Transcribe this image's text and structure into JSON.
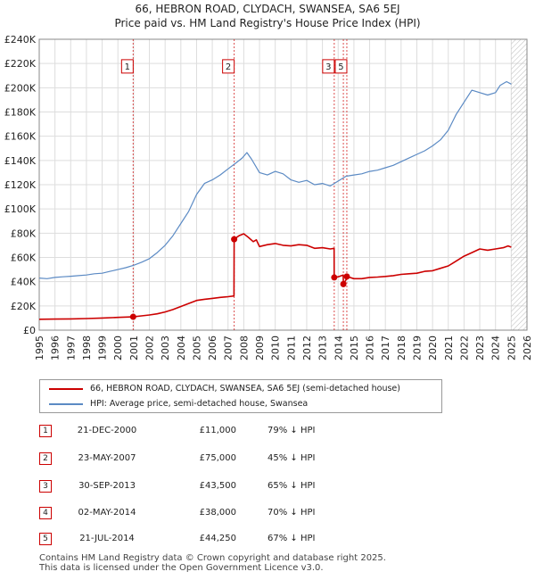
{
  "title_line1": "66, HEBRON ROAD, CLYDACH, SWANSEA, SA6 5EJ",
  "title_line2": "Price paid vs. HM Land Registry's House Price Index (HPI)",
  "colors": {
    "price": "#cc0000",
    "hpi": "#5b8ac4",
    "marker_line": "#cc0000",
    "grid": "#dddddd",
    "forecast_hatch": "#bbbbbb"
  },
  "legend": {
    "price_label": "66, HEBRON ROAD, CLYDACH, SWANSEA, SA6 5EJ (semi-detached house)",
    "hpi_label": "HPI: Average price, semi-detached house, Swansea"
  },
  "transactions": [
    {
      "num": "1",
      "date": "21-DEC-2000",
      "price": "£11,000",
      "hpi": "79% ↓ HPI"
    },
    {
      "num": "2",
      "date": "23-MAY-2007",
      "price": "£75,000",
      "hpi": "45% ↓ HPI"
    },
    {
      "num": "3",
      "date": "30-SEP-2013",
      "price": "£43,500",
      "hpi": "65% ↓ HPI"
    },
    {
      "num": "4",
      "date": "02-MAY-2014",
      "price": "£38,000",
      "hpi": "70% ↓ HPI"
    },
    {
      "num": "5",
      "date": "21-JUL-2014",
      "price": "£44,250",
      "hpi": "67% ↓ HPI"
    }
  ],
  "footer_line1": "Contains HM Land Registry data © Crown copyright and database right 2025.",
  "footer_line2": "This data is licensed under the Open Government Licence v3.0.",
  "chart_data": {
    "type": "line",
    "xlim": [
      1995,
      2026
    ],
    "ylim": [
      0,
      240000
    ],
    "xticks": [
      "1995",
      "1996",
      "1997",
      "1998",
      "1999",
      "2000",
      "2001",
      "2002",
      "2003",
      "2004",
      "2005",
      "2006",
      "2007",
      "2008",
      "2009",
      "2010",
      "2011",
      "2012",
      "2013",
      "2014",
      "2015",
      "2016",
      "2017",
      "2018",
      "2019",
      "2020",
      "2021",
      "2022",
      "2023",
      "2024",
      "2025",
      "2026"
    ],
    "yticks": [
      {
        "v": 0,
        "label": "£0"
      },
      {
        "v": 20000,
        "label": "£20K"
      },
      {
        "v": 40000,
        "label": "£40K"
      },
      {
        "v": 60000,
        "label": "£60K"
      },
      {
        "v": 80000,
        "label": "£80K"
      },
      {
        "v": 100000,
        "label": "£100K"
      },
      {
        "v": 120000,
        "label": "£120K"
      },
      {
        "v": 140000,
        "label": "£140K"
      },
      {
        "v": 160000,
        "label": "£160K"
      },
      {
        "v": 180000,
        "label": "£180K"
      },
      {
        "v": 200000,
        "label": "£200K"
      },
      {
        "v": 220000,
        "label": "£220K"
      },
      {
        "v": 240000,
        "label": "£240K"
      }
    ],
    "forecast_start": 2025.0,
    "markers": [
      {
        "label": "1",
        "x": 2000.97,
        "y": 11000,
        "box_y": 218000
      },
      {
        "label": "2",
        "x": 2007.39,
        "y": 75000,
        "box_y": 218000
      },
      {
        "label": "3",
        "x": 2013.75,
        "y": 43500,
        "box_y": 218000
      },
      {
        "label": "4",
        "x": 2014.33,
        "y": 38000,
        "box_y": null
      },
      {
        "label": "5",
        "x": 2014.55,
        "y": 44250,
        "box_y": 218000
      }
    ],
    "series": [
      {
        "name": "66, HEBRON ROAD, CLYDACH, SWANSEA, SA6 5EJ (semi-detached house)",
        "points": [
          [
            1995.0,
            9000
          ],
          [
            1996.0,
            9100
          ],
          [
            1997.0,
            9300
          ],
          [
            1998.0,
            9600
          ],
          [
            1999.0,
            10000
          ],
          [
            2000.0,
            10500
          ],
          [
            2000.97,
            11000
          ],
          [
            2001.5,
            11800
          ],
          [
            2002.0,
            12500
          ],
          [
            2002.5,
            13500
          ],
          [
            2003.0,
            15000
          ],
          [
            2003.5,
            17000
          ],
          [
            2004.0,
            19500
          ],
          [
            2004.5,
            22000
          ],
          [
            2005.0,
            24500
          ],
          [
            2005.5,
            25500
          ],
          [
            2006.0,
            26200
          ],
          [
            2006.5,
            27000
          ],
          [
            2007.0,
            27600
          ],
          [
            2007.38,
            28200
          ],
          [
            2007.39,
            75000
          ],
          [
            2007.7,
            78000
          ],
          [
            2008.0,
            79500
          ],
          [
            2008.3,
            76500
          ],
          [
            2008.6,
            73000
          ],
          [
            2008.8,
            74500
          ],
          [
            2009.0,
            69000
          ],
          [
            2009.5,
            70500
          ],
          [
            2010.0,
            71500
          ],
          [
            2010.5,
            70000
          ],
          [
            2011.0,
            69500
          ],
          [
            2011.5,
            70500
          ],
          [
            2012.0,
            70000
          ],
          [
            2012.5,
            67500
          ],
          [
            2013.0,
            68000
          ],
          [
            2013.5,
            67000
          ],
          [
            2013.74,
            67500
          ],
          [
            2013.75,
            43500
          ],
          [
            2014.0,
            44000
          ],
          [
            2014.32,
            45500
          ],
          [
            2014.33,
            38000
          ],
          [
            2014.54,
            42500
          ],
          [
            2014.55,
            44250
          ],
          [
            2015.0,
            42500
          ],
          [
            2015.5,
            42500
          ],
          [
            2016.0,
            43500
          ],
          [
            2016.5,
            43800
          ],
          [
            2017.0,
            44300
          ],
          [
            2017.5,
            45000
          ],
          [
            2018.0,
            46000
          ],
          [
            2018.5,
            46500
          ],
          [
            2019.0,
            47000
          ],
          [
            2019.5,
            48500
          ],
          [
            2020.0,
            49000
          ],
          [
            2020.5,
            51000
          ],
          [
            2021.0,
            53000
          ],
          [
            2021.5,
            57000
          ],
          [
            2022.0,
            61000
          ],
          [
            2022.5,
            64000
          ],
          [
            2023.0,
            67000
          ],
          [
            2023.5,
            66000
          ],
          [
            2024.0,
            67000
          ],
          [
            2024.5,
            68000
          ],
          [
            2024.8,
            69500
          ],
          [
            2025.0,
            68500
          ]
        ]
      },
      {
        "name": "HPI: Average price, semi-detached house, Swansea",
        "points": [
          [
            1995.0,
            43000
          ],
          [
            1995.5,
            42500
          ],
          [
            1996.0,
            43500
          ],
          [
            1996.5,
            44000
          ],
          [
            1997.0,
            44500
          ],
          [
            1997.5,
            45000
          ],
          [
            1998.0,
            45500
          ],
          [
            1998.5,
            46500
          ],
          [
            1999.0,
            47000
          ],
          [
            1999.5,
            48500
          ],
          [
            2000.0,
            50000
          ],
          [
            2000.5,
            51500
          ],
          [
            2001.0,
            53500
          ],
          [
            2001.5,
            56000
          ],
          [
            2002.0,
            59000
          ],
          [
            2002.5,
            64000
          ],
          [
            2003.0,
            70000
          ],
          [
            2003.5,
            78000
          ],
          [
            2004.0,
            88000
          ],
          [
            2004.5,
            98000
          ],
          [
            2005.0,
            112000
          ],
          [
            2005.5,
            121000
          ],
          [
            2006.0,
            124000
          ],
          [
            2006.5,
            128000
          ],
          [
            2007.0,
            133000
          ],
          [
            2007.5,
            138000
          ],
          [
            2007.9,
            142000
          ],
          [
            2008.2,
            146500
          ],
          [
            2008.5,
            141000
          ],
          [
            2009.0,
            130000
          ],
          [
            2009.5,
            128000
          ],
          [
            2010.0,
            131000
          ],
          [
            2010.5,
            129000
          ],
          [
            2011.0,
            124000
          ],
          [
            2011.5,
            122000
          ],
          [
            2012.0,
            123500
          ],
          [
            2012.5,
            120000
          ],
          [
            2013.0,
            121000
          ],
          [
            2013.5,
            119000
          ],
          [
            2014.0,
            123000
          ],
          [
            2014.5,
            127000
          ],
          [
            2015.0,
            128000
          ],
          [
            2015.5,
            129000
          ],
          [
            2016.0,
            131000
          ],
          [
            2016.5,
            132000
          ],
          [
            2017.0,
            134000
          ],
          [
            2017.5,
            136000
          ],
          [
            2018.0,
            139000
          ],
          [
            2018.5,
            142000
          ],
          [
            2019.0,
            145000
          ],
          [
            2019.5,
            148000
          ],
          [
            2020.0,
            152000
          ],
          [
            2020.5,
            157000
          ],
          [
            2021.0,
            165000
          ],
          [
            2021.5,
            178000
          ],
          [
            2022.0,
            188000
          ],
          [
            2022.5,
            198000
          ],
          [
            2023.0,
            196000
          ],
          [
            2023.5,
            194000
          ],
          [
            2024.0,
            196000
          ],
          [
            2024.3,
            202000
          ],
          [
            2024.7,
            205000
          ],
          [
            2025.0,
            203000
          ]
        ]
      }
    ]
  }
}
